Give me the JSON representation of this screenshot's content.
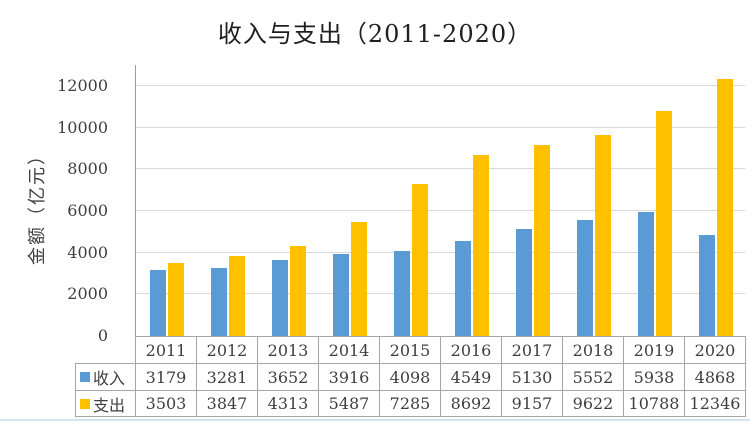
{
  "chart_data": {
    "type": "bar",
    "title": "收入与支出（2011-2020）",
    "xlabel": "",
    "ylabel": "金额（亿元）",
    "categories": [
      "2011",
      "2012",
      "2013",
      "2014",
      "2015",
      "2016",
      "2017",
      "2018",
      "2019",
      "2020"
    ],
    "series": [
      {
        "name": "收入",
        "color": "#5B9BD5",
        "values": [
          3179,
          3281,
          3652,
          3916,
          4098,
          4549,
          5130,
          5552,
          5938,
          4868
        ]
      },
      {
        "name": "支出",
        "color": "#FFC000",
        "values": [
          3503,
          3847,
          4313,
          5487,
          7285,
          8692,
          9157,
          9622,
          10788,
          12346
        ]
      }
    ],
    "y_axis": {
      "min": 0,
      "max": 13000,
      "tick_step": 2000,
      "tick_labels": [
        "0",
        "2000",
        "4000",
        "6000",
        "8000",
        "10000",
        "12000"
      ]
    },
    "grid": true,
    "legend_position": "data-table-left",
    "data_table_shown": true
  },
  "colors": {
    "income": "#5B9BD5",
    "expense": "#FFC000",
    "gridline": "#d9d9d9",
    "axis_line": "#9b9b9b",
    "table_border": "#a6a6a6",
    "text": "#3f3f3f",
    "title_text": "#1f1f1f",
    "bottom_rule": "#d5e3f0"
  }
}
